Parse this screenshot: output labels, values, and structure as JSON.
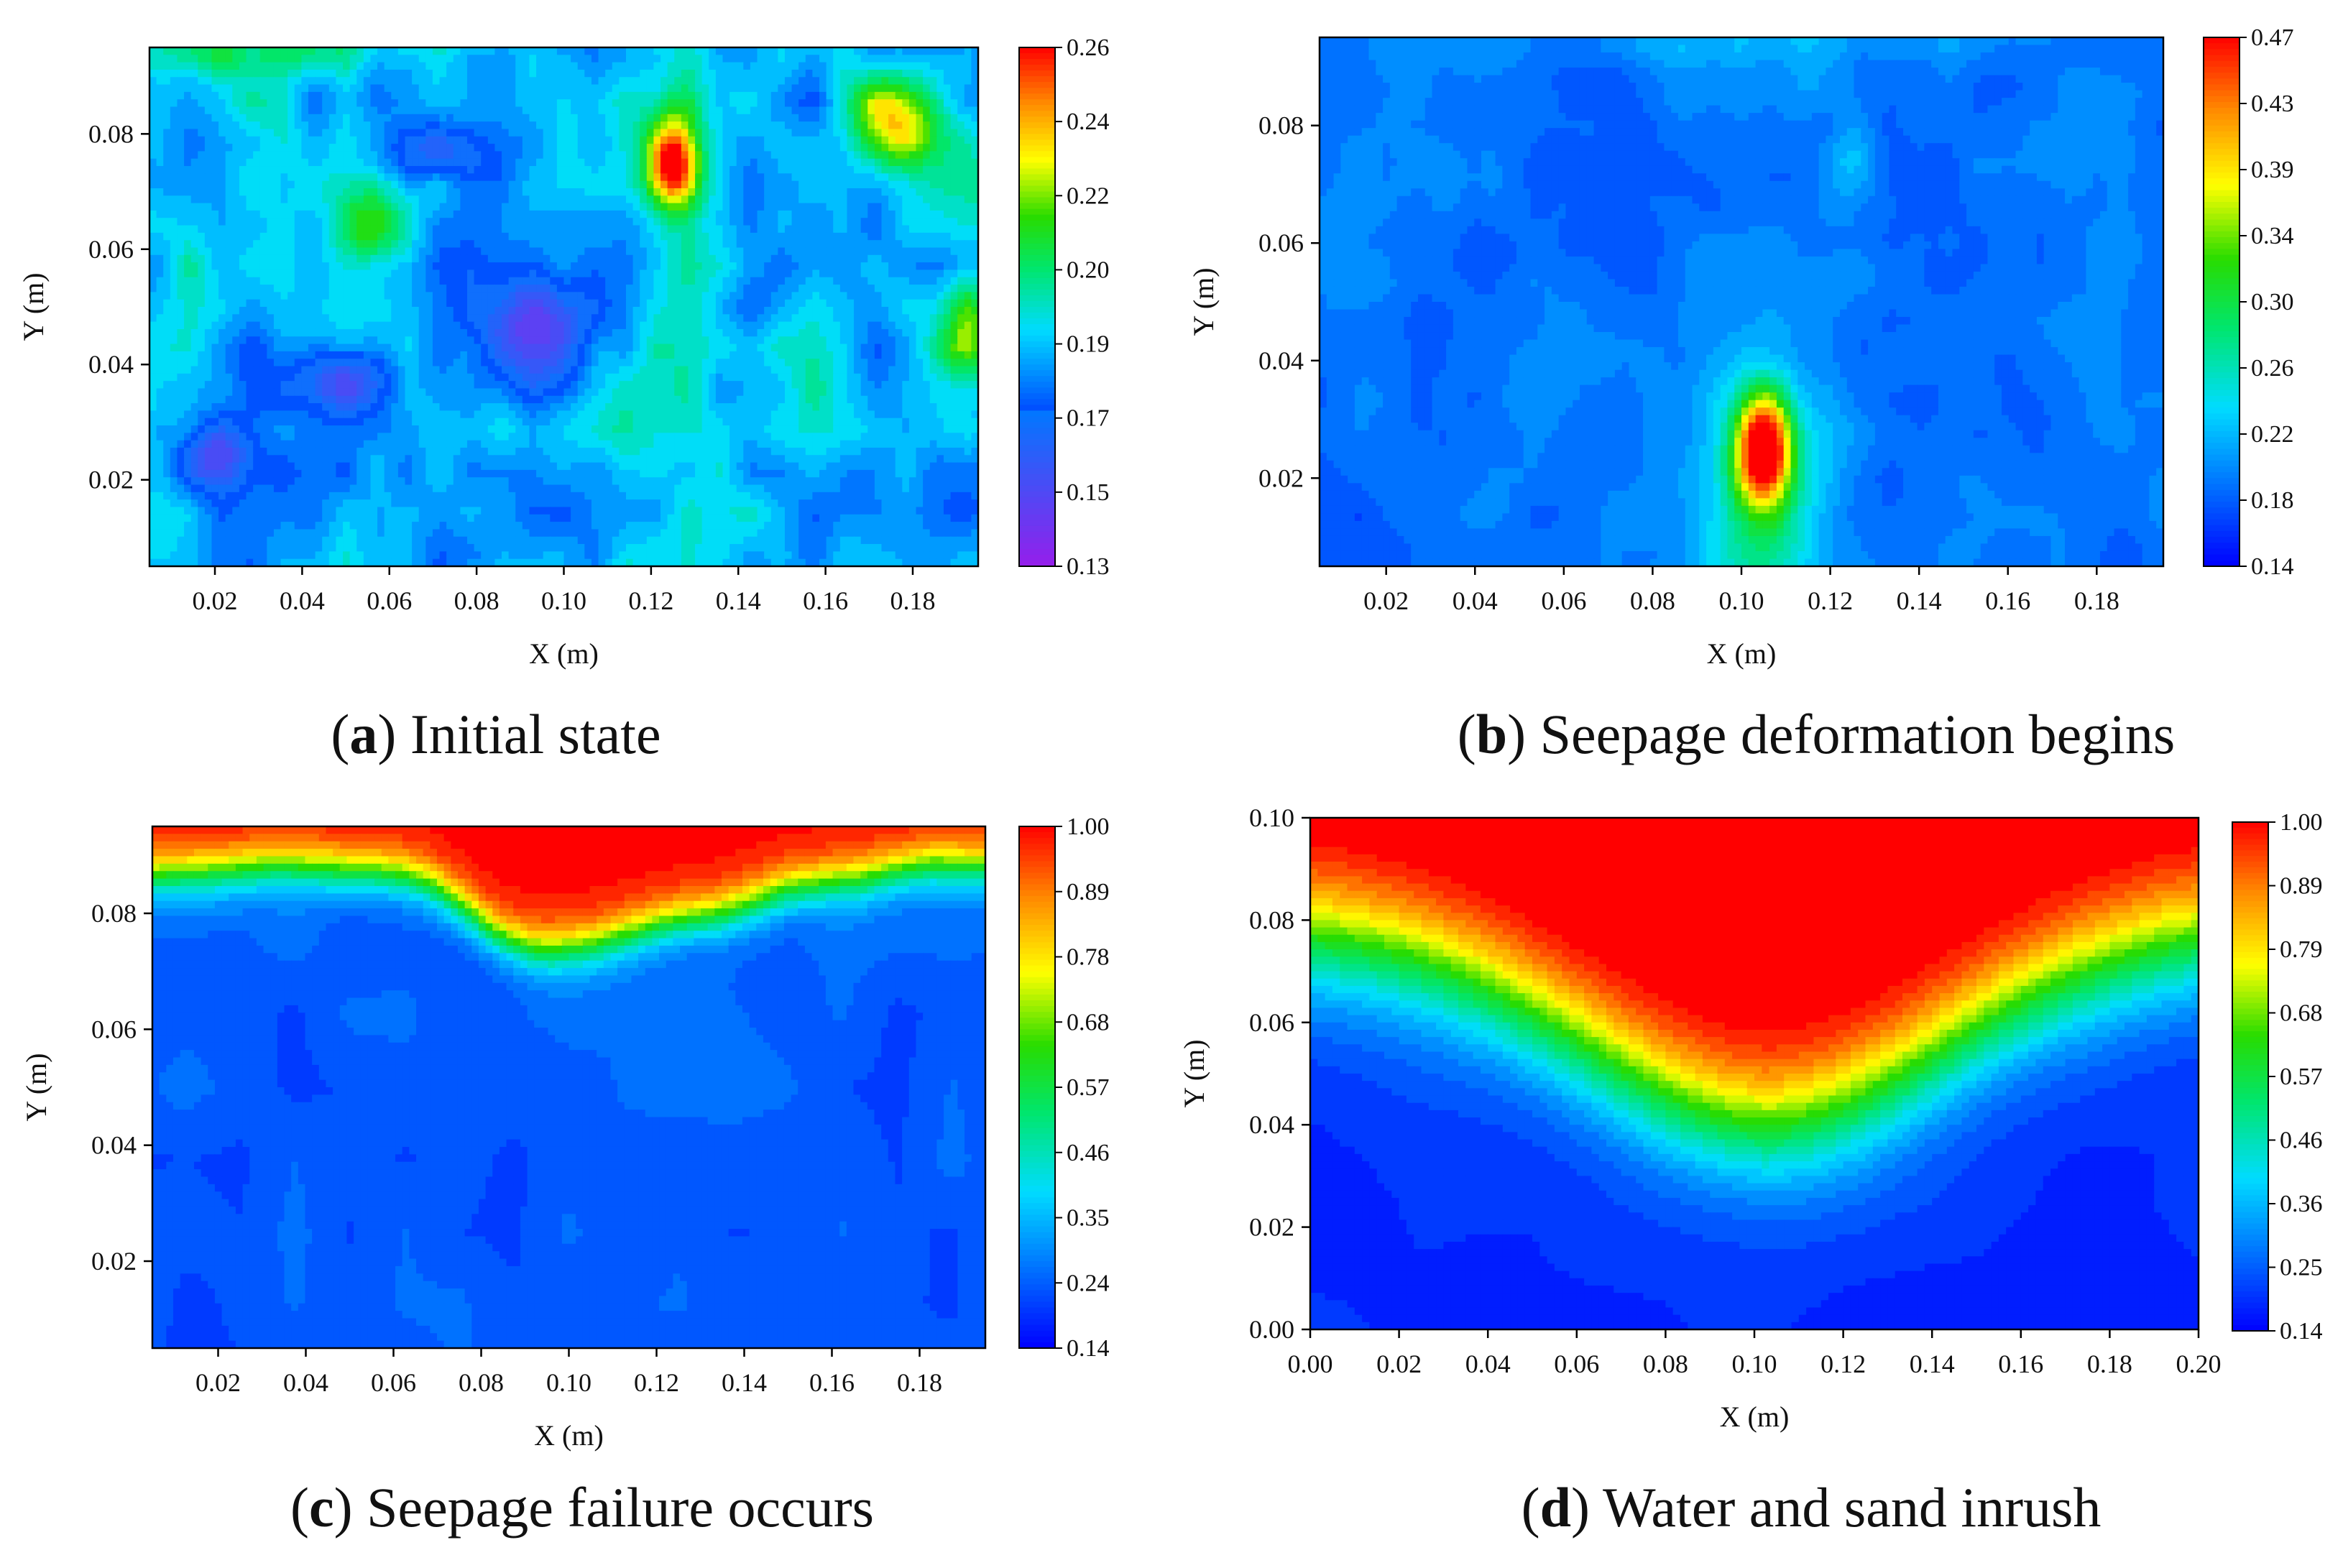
{
  "chart_data": [
    {
      "type": "heatmap",
      "id": "a",
      "caption_letter": "a",
      "caption_text": "Initial state",
      "xlabel": "X (m)",
      "ylabel": "Y (m)",
      "xlim": [
        0.005,
        0.195
      ],
      "ylim": [
        0.005,
        0.095
      ],
      "xticks": [
        "0.02",
        "0.04",
        "0.06",
        "0.08",
        "0.10",
        "0.12",
        "0.14",
        "0.16",
        "0.18"
      ],
      "yticks": [
        "0.02",
        "0.04",
        "0.06",
        "0.08"
      ],
      "colorbar": {
        "min": 0.13,
        "max": 0.26,
        "ticks": [
          "0.13",
          "0.15",
          "0.17",
          "0.19",
          "0.20",
          "0.22",
          "0.24",
          "0.26"
        ],
        "low_color": "#9a1fe8",
        "high_color": "#ff1500"
      },
      "pattern": "initial",
      "features": [
        {
          "x": 0.125,
          "y": 0.075,
          "value": 0.26
        },
        {
          "x": 0.175,
          "y": 0.083,
          "value": 0.22
        },
        {
          "x": 0.192,
          "y": 0.047,
          "value": 0.2
        },
        {
          "x": 0.095,
          "y": 0.045,
          "value": 0.13
        },
        {
          "x": 0.05,
          "y": 0.037,
          "value": 0.14
        },
        {
          "x": 0.02,
          "y": 0.024,
          "value": 0.145
        },
        {
          "x": 0.055,
          "y": 0.064,
          "value": 0.2
        }
      ]
    },
    {
      "type": "heatmap",
      "id": "b",
      "caption_letter": "b",
      "caption_text": "Seepage deformation begins",
      "xlabel": "X (m)",
      "ylabel": "Y (m)",
      "xlim": [
        0.005,
        0.195
      ],
      "ylim": [
        0.005,
        0.095
      ],
      "xticks": [
        "0.02",
        "0.04",
        "0.06",
        "0.08",
        "0.10",
        "0.12",
        "0.14",
        "0.16",
        "0.18"
      ],
      "yticks": [
        "0.02",
        "0.04",
        "0.06",
        "0.08"
      ],
      "colorbar": {
        "min": 0.14,
        "max": 0.47,
        "ticks": [
          "0.14",
          "0.18",
          "0.22",
          "0.26",
          "0.30",
          "0.34",
          "0.39",
          "0.43",
          "0.47"
        ],
        "low_color": "#0000ff",
        "high_color": "#ff0000"
      },
      "pattern": "begins",
      "features": [
        {
          "x": 0.105,
          "y": 0.025,
          "value": 0.47
        },
        {
          "x": 0.125,
          "y": 0.072,
          "value": 0.24
        }
      ]
    },
    {
      "type": "heatmap",
      "id": "c",
      "caption_letter": "c",
      "caption_text": "Seepage failure occurs",
      "xlabel": "X (m)",
      "ylabel": "Y (m)",
      "xlim": [
        0.005,
        0.195
      ],
      "ylim": [
        0.005,
        0.095
      ],
      "xticks": [
        "0.02",
        "0.04",
        "0.06",
        "0.08",
        "0.10",
        "0.12",
        "0.14",
        "0.16",
        "0.18"
      ],
      "yticks": [
        "0.02",
        "0.04",
        "0.06",
        "0.08"
      ],
      "colorbar": {
        "min": 0.14,
        "max": 1.0,
        "ticks": [
          "0.14",
          "0.24",
          "0.35",
          "0.46",
          "0.57",
          "0.68",
          "0.78",
          "0.89",
          "1.00"
        ],
        "low_color": "#0000ff",
        "high_color": "#ff0000"
      },
      "pattern": "failure",
      "features": [
        {
          "x": 0.095,
          "y": 0.07,
          "value": 1.0
        }
      ]
    },
    {
      "type": "heatmap",
      "id": "d",
      "caption_letter": "d",
      "caption_text": "Water and sand inrush",
      "xlabel": "X (m)",
      "ylabel": "Y (m)",
      "xlim": [
        0.0,
        0.2
      ],
      "ylim": [
        0.0,
        0.1
      ],
      "xticks": [
        "0.00",
        "0.02",
        "0.04",
        "0.06",
        "0.08",
        "0.10",
        "0.12",
        "0.14",
        "0.16",
        "0.18",
        "0.20"
      ],
      "yticks": [
        "0.00",
        "0.02",
        "0.04",
        "0.06",
        "0.08",
        "0.10"
      ],
      "colorbar": {
        "min": 0.14,
        "max": 1.0,
        "ticks": [
          "0.14",
          "0.25",
          "0.36",
          "0.46",
          "0.57",
          "0.68",
          "0.79",
          "0.89",
          "1.00"
        ],
        "low_color": "#0000ff",
        "high_color": "#ff0000"
      },
      "pattern": "inrush",
      "features": [
        {
          "x": 0.103,
          "y": 0.055,
          "value": 1.0
        },
        {
          "x": 0.103,
          "y": 0.018,
          "value": 0.35
        }
      ]
    }
  ]
}
